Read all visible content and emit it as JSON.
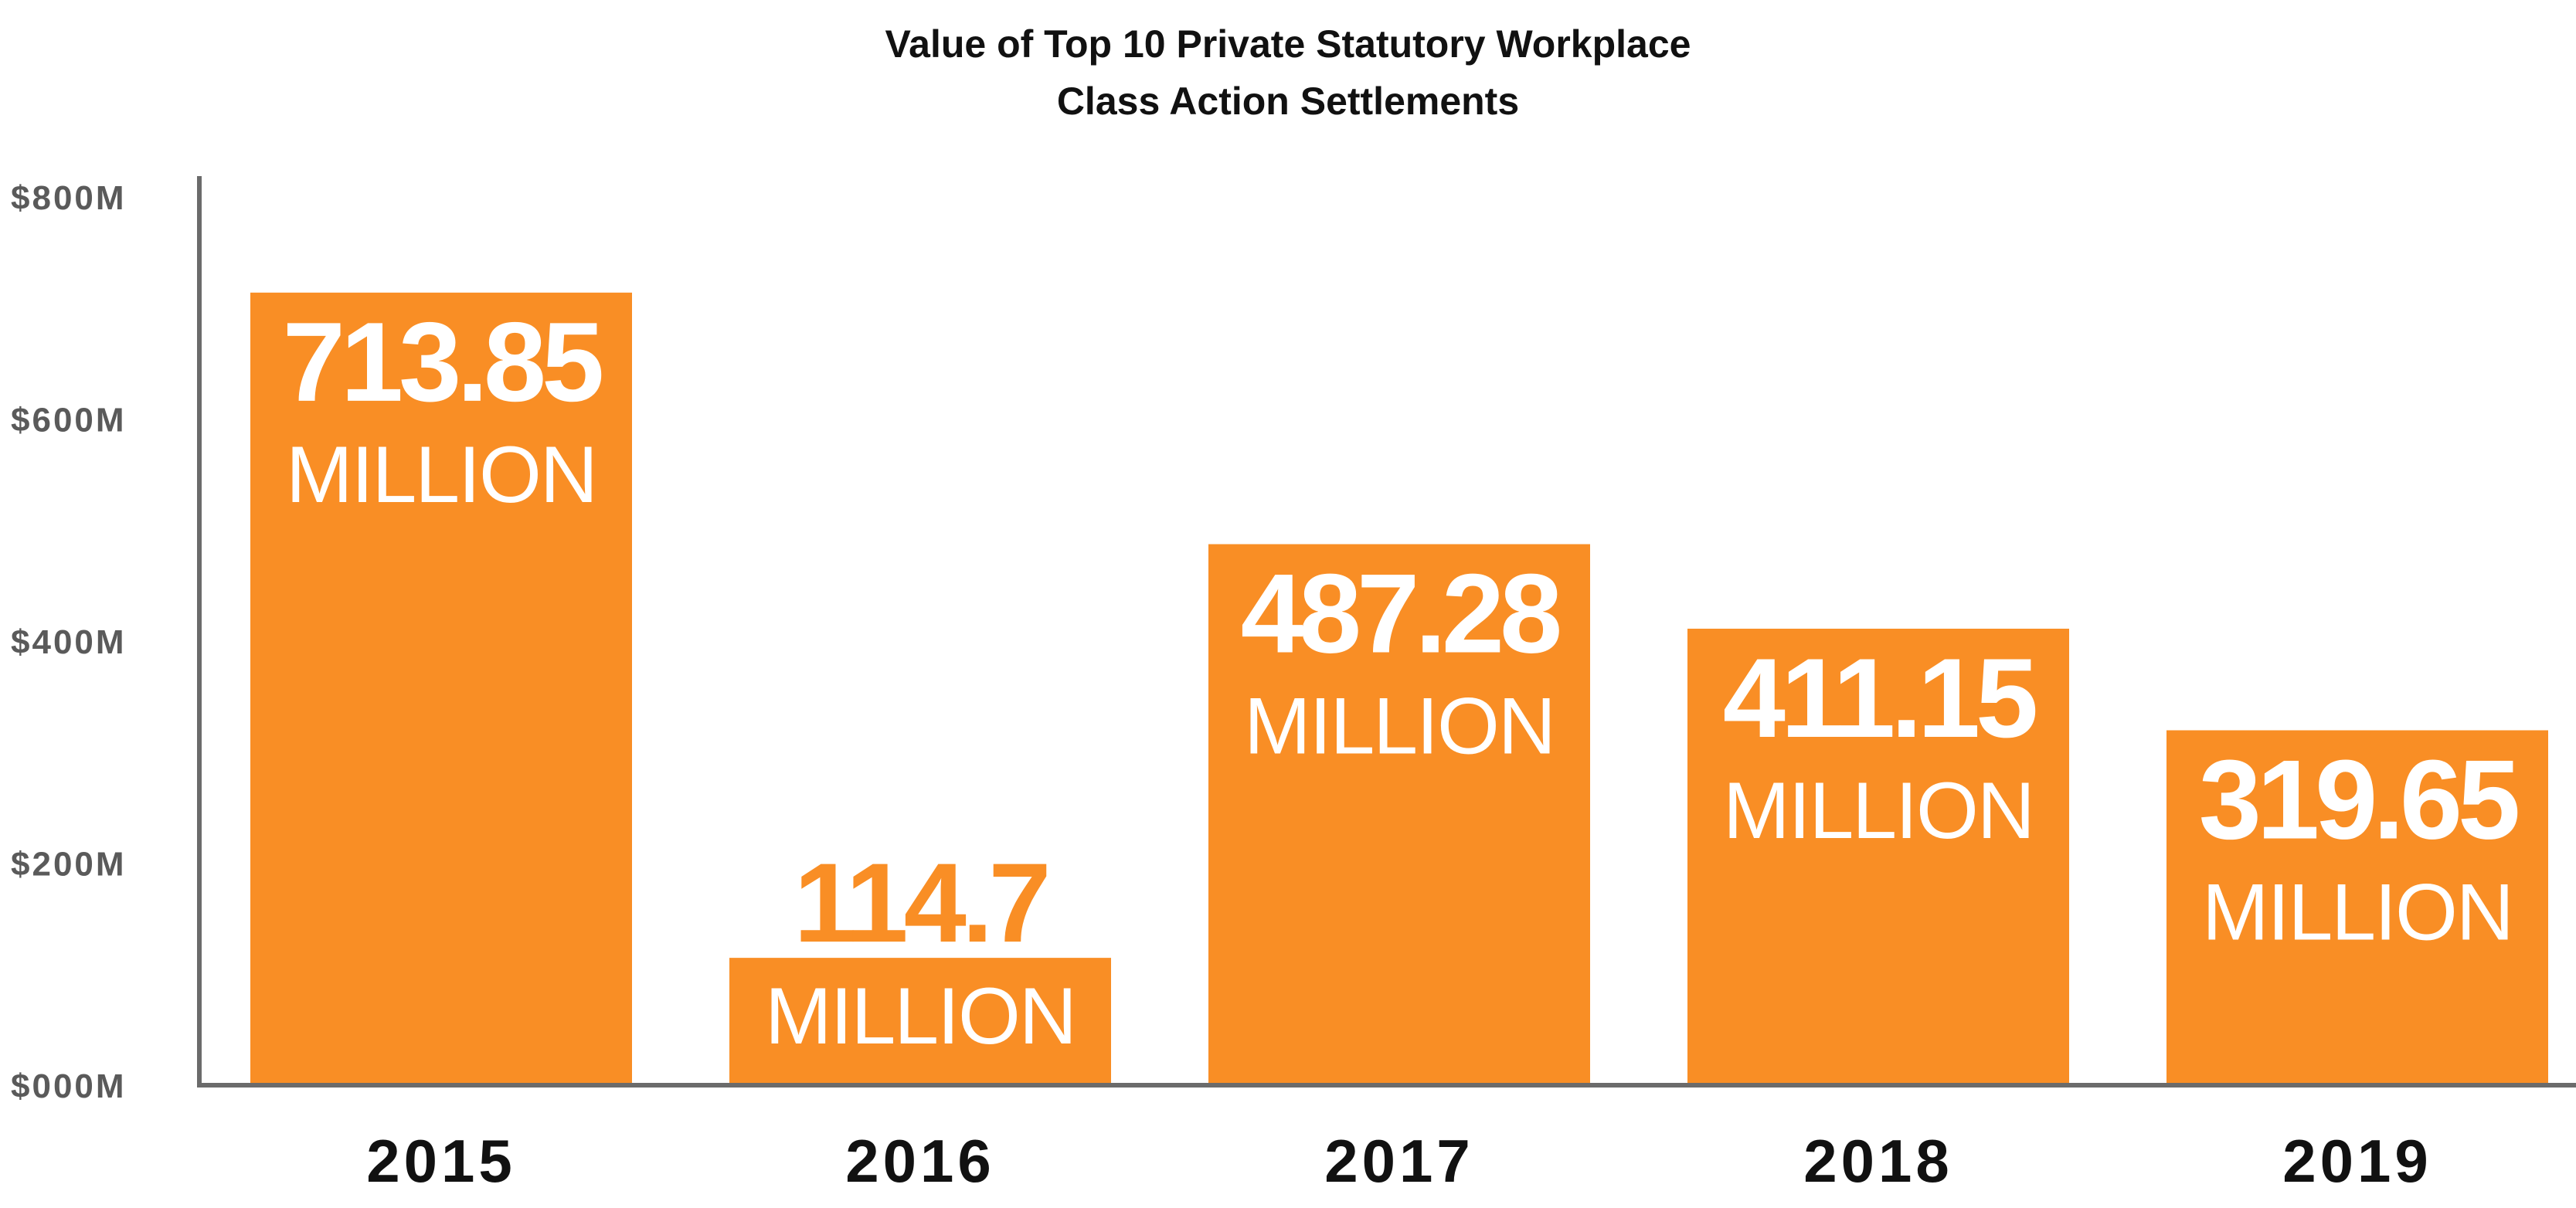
{
  "chart_data": {
    "type": "bar",
    "title_lines": [
      "Value of Top 10 Private Statutory Workplace",
      "Class Action Settlements"
    ],
    "categories": [
      "2015",
      "2016",
      "2017",
      "2018",
      "2019"
    ],
    "values": [
      713.85,
      114.7,
      487.28,
      411.15,
      319.65
    ],
    "value_labels": [
      "713.85",
      "114.7",
      "487.28",
      "411.15",
      "319.65"
    ],
    "value_unit_label": "MILLION",
    "ylim": [
      0,
      800
    ],
    "yticks": [
      0,
      200,
      400,
      600,
      800
    ],
    "ytick_labels": [
      "$000M",
      "$200M",
      "$400M",
      "$600M",
      "$800M"
    ],
    "xlabel": "",
    "ylabel": "",
    "grid": false,
    "bar_color": "#F98E25",
    "label_inside_color": "#ffffff",
    "label_outside_color": "#F98E25",
    "axis_color": "#6b6b6b"
  }
}
